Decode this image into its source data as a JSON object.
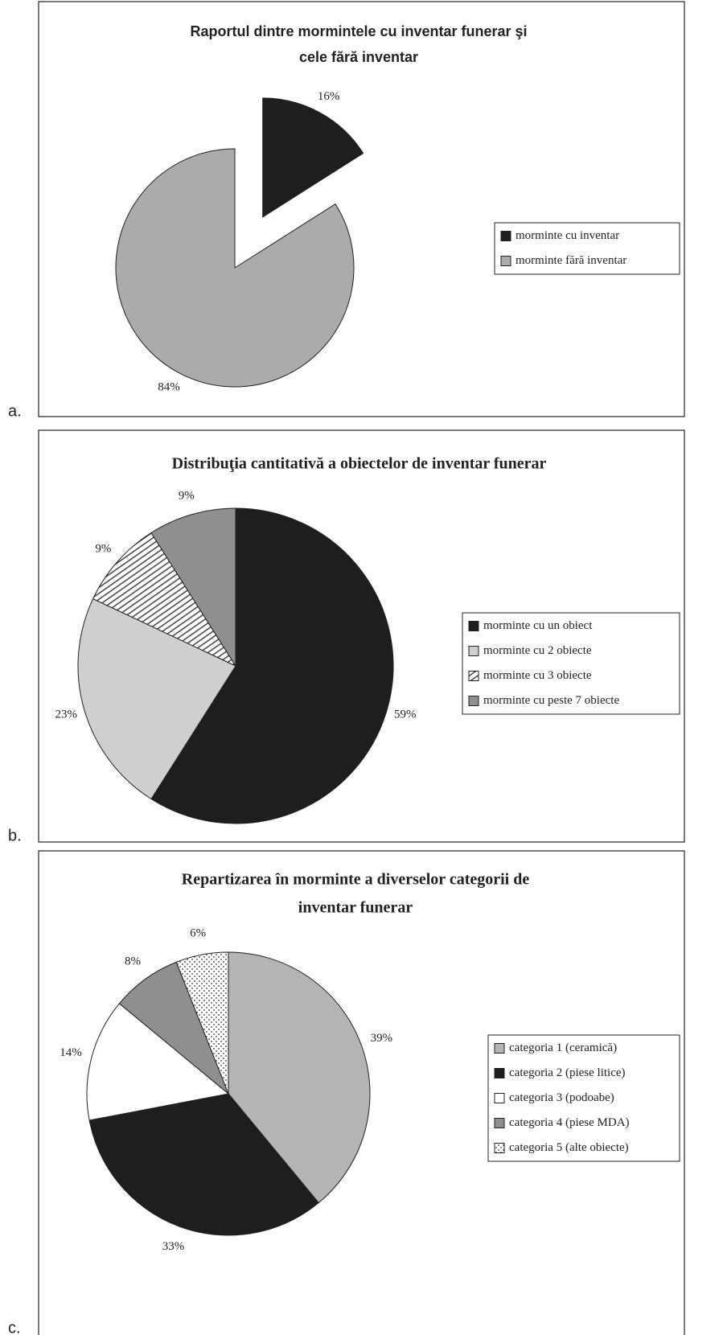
{
  "chart_data": [
    {
      "type": "pie",
      "panel": "a.",
      "title": [
        "Raportul dintre  mormintele cu inventar funerar şi",
        "cele fără inventar"
      ],
      "categories": [
        "morminte cu inventar",
        "morminte fără inventar"
      ],
      "values": [
        16,
        84
      ],
      "value_labels": [
        "16%",
        "84%"
      ],
      "colors": [
        "#1e1e1e",
        "#ababab"
      ],
      "patterns": [
        "solid",
        "solid"
      ],
      "exploded": [
        true,
        false
      ],
      "legend": "right"
    },
    {
      "type": "pie",
      "panel": "b.",
      "title": [
        "Distribuţia cantitativă a obiectelor de inventar funerar"
      ],
      "categories": [
        "morminte cu un obiect",
        "morminte cu 2 obiecte",
        "morminte cu 3 obiecte",
        "morminte cu peste 7 obiecte"
      ],
      "values": [
        59,
        23,
        9,
        9
      ],
      "value_labels": [
        "59%",
        "23%",
        "9%",
        "9%"
      ],
      "colors": [
        "#1e1e1e",
        "#cfcfcf",
        "#ffffff",
        "#8f8f8f"
      ],
      "patterns": [
        "solid",
        "solid",
        "hatch",
        "solid"
      ],
      "legend": "right"
    },
    {
      "type": "pie",
      "panel": "c.",
      "title": [
        "Repartizarea în morminte a diverselor categorii de",
        "inventar funerar"
      ],
      "categories": [
        "categoria 1 (ceramică)",
        "categoria 2 (piese litice)",
        "categoria 3 (podoabe)",
        "categoria 4 (piese MDA)",
        "categoria 5 (alte obiecte)"
      ],
      "values": [
        39,
        33,
        14,
        8,
        6
      ],
      "value_labels": [
        "39%",
        "33%",
        "14%",
        "8%",
        "6%"
      ],
      "colors": [
        "#b4b4b4",
        "#1e1e1e",
        "#ffffff",
        "#8f8f8f",
        "#ffffff"
      ],
      "patterns": [
        "solid",
        "solid",
        "solid",
        "solid",
        "dots"
      ],
      "legend": "right"
    }
  ]
}
